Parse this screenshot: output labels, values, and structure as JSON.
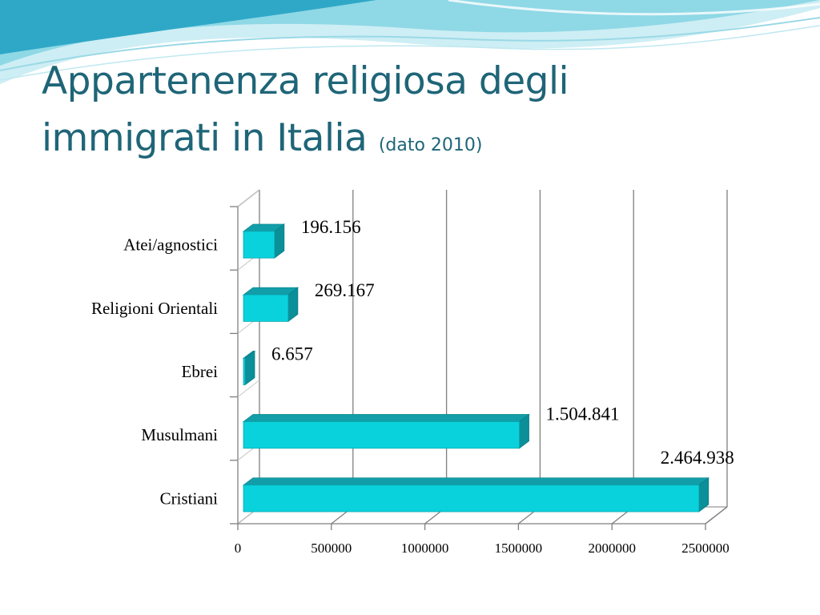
{
  "slide": {
    "title": "Appartenenza religiosa degli immigrati in Italia",
    "title_line1": "Appartenenza religiosa degli",
    "title_line2": "immigrati in Italia",
    "subtitle": "(dato 2010)",
    "title_color": "#1f6578",
    "accent_color": "#6ccbd9"
  },
  "chart_data": {
    "type": "bar",
    "orientation": "horizontal",
    "style": "3d",
    "categories": [
      "Atei/agnostici",
      "Religioni Orientali",
      "Ebrei",
      "Musulmani",
      "Cristiani"
    ],
    "values": [
      196156,
      269167,
      6657,
      1504841,
      2464938
    ],
    "value_labels": [
      "196.156",
      "269.167",
      "6.657",
      "1.504.841",
      "2.464.938"
    ],
    "xlim": [
      0,
      2500000
    ],
    "x_ticks": [
      0,
      500000,
      1000000,
      1500000,
      2000000,
      2500000
    ],
    "x_tick_labels": [
      "0",
      "500000",
      "1000000",
      "1500000",
      "2000000",
      "2500000"
    ],
    "grid": "vertical",
    "legend": "none",
    "bar_color": "#0ad2dc"
  }
}
